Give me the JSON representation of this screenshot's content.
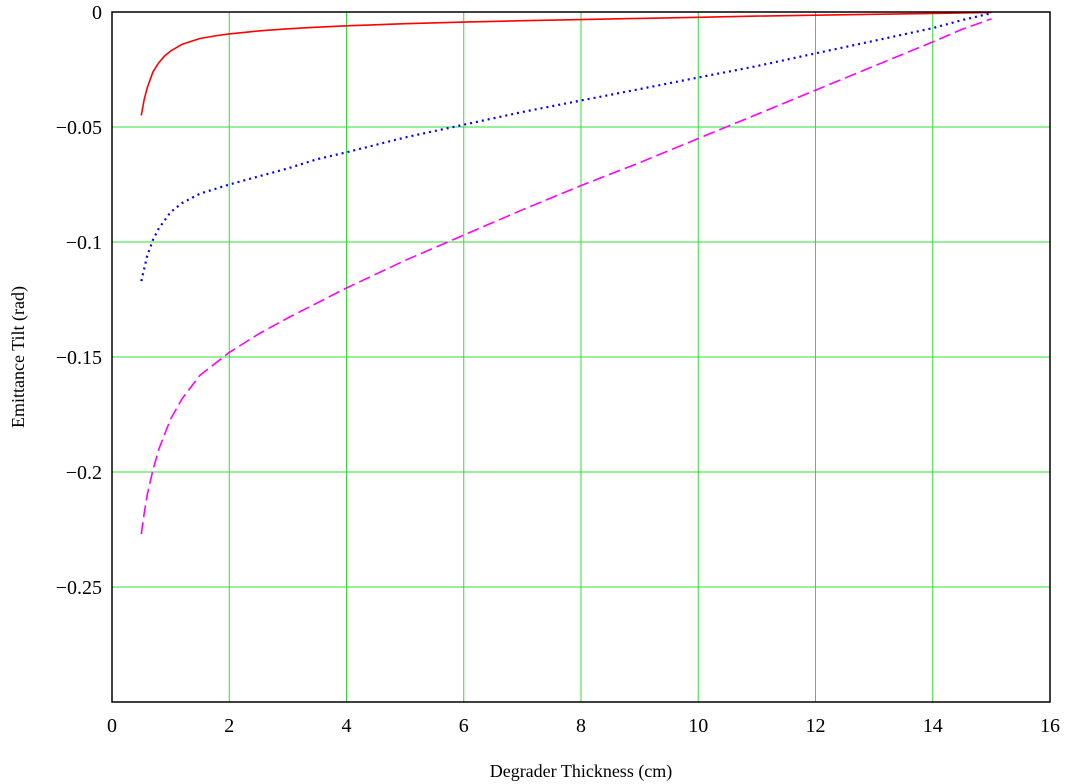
{
  "chart_data": {
    "type": "line",
    "title": "",
    "xlabel": "Degrader Thickness (cm)",
    "ylabel": "Emittance Tilt (rad)",
    "xlim": [
      0,
      16
    ],
    "ylim": [
      -0.3,
      0
    ],
    "x_ticks": [
      0,
      2,
      4,
      6,
      8,
      10,
      12,
      14,
      16
    ],
    "x_tick_labels": [
      "0",
      "2",
      "4",
      "6",
      "8",
      "10",
      "12",
      "14",
      "16"
    ],
    "y_ticks": [
      0,
      -0.05,
      -0.1,
      -0.15,
      -0.2,
      -0.25
    ],
    "y_tick_labels": [
      "0",
      "−0.05",
      "−0.1",
      "−0.15",
      "−0.2",
      "−0.25"
    ],
    "grid": true,
    "grid_color": "#33dd33",
    "legend": "none",
    "series": [
      {
        "color": "#ff0000",
        "style": "solid",
        "x": [
          0.5,
          0.55,
          0.6,
          0.7,
          0.8,
          0.9,
          1.0,
          1.2,
          1.5,
          1.8,
          2.0,
          2.5,
          3.0,
          3.5,
          4.0,
          5.0,
          6.0,
          7.0,
          8.0,
          9.0,
          10.0,
          11.0,
          12.0,
          13.0,
          14.0,
          15.0
        ],
        "y": [
          -0.045,
          -0.038,
          -0.033,
          -0.026,
          -0.022,
          -0.019,
          -0.017,
          -0.014,
          -0.0115,
          -0.0102,
          -0.0095,
          -0.0082,
          -0.0073,
          -0.0066,
          -0.006,
          -0.0051,
          -0.0044,
          -0.0038,
          -0.0033,
          -0.0028,
          -0.0023,
          -0.0018,
          -0.0014,
          -0.001,
          -0.0006,
          -0.0002
        ]
      },
      {
        "color": "#0000ff",
        "style": "dotted",
        "x": [
          0.5,
          0.6,
          0.7,
          0.8,
          1.0,
          1.2,
          1.5,
          2.0,
          2.5,
          3.0,
          3.5,
          4.0,
          5.0,
          6.0,
          7.0,
          8.0,
          9.0,
          10.0,
          11.0,
          12.0,
          13.0,
          14.0,
          14.5,
          15.0
        ],
        "y": [
          -0.117,
          -0.106,
          -0.099,
          -0.094,
          -0.087,
          -0.083,
          -0.079,
          -0.075,
          -0.0715,
          -0.068,
          -0.064,
          -0.061,
          -0.0545,
          -0.049,
          -0.0435,
          -0.0385,
          -0.0335,
          -0.0285,
          -0.0235,
          -0.018,
          -0.0125,
          -0.007,
          -0.0035,
          -0.0005
        ]
      },
      {
        "color": "#ff00ff",
        "style": "dashed",
        "x": [
          0.5,
          0.55,
          0.6,
          0.7,
          0.8,
          1.0,
          1.2,
          1.5,
          2.0,
          2.5,
          3.0,
          4.0,
          5.0,
          6.0,
          7.0,
          8.0,
          9.0,
          10.0,
          11.0,
          12.0,
          13.0,
          14.0,
          14.5,
          15.0
        ],
        "y": [
          -0.227,
          -0.218,
          -0.21,
          -0.199,
          -0.19,
          -0.177,
          -0.168,
          -0.158,
          -0.148,
          -0.14,
          -0.133,
          -0.12,
          -0.108,
          -0.097,
          -0.086,
          -0.0755,
          -0.0655,
          -0.055,
          -0.0445,
          -0.034,
          -0.0235,
          -0.013,
          -0.0075,
          -0.003
        ]
      }
    ]
  }
}
